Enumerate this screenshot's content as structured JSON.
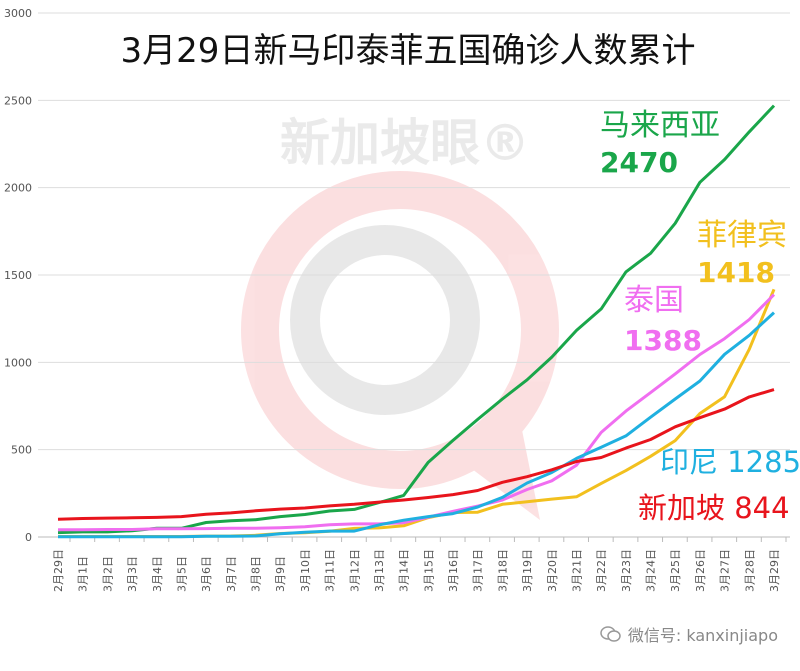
{
  "chart_data": {
    "type": "line",
    "title": "3月29日新马印泰菲五国确诊人数累计",
    "xlabel": "",
    "ylabel": "",
    "ylim": [
      0,
      3000
    ],
    "yticks": [
      0,
      500,
      1000,
      1500,
      2000,
      2500,
      3000
    ],
    "grid": true,
    "legend": "inline labels at line ends",
    "categories": [
      "2月29日",
      "3月1日",
      "3月2日",
      "3月3日",
      "3月4日",
      "3月5日",
      "3月6日",
      "3月7日",
      "3月8日",
      "3月9日",
      "3月10日",
      "3月11日",
      "3月12日",
      "3月13日",
      "3月14日",
      "3月15日",
      "3月16日",
      "3月17日",
      "3月18日",
      "3月19日",
      "3月20日",
      "3月21日",
      "3月22日",
      "3月23日",
      "3月24日",
      "3月25日",
      "3月26日",
      "3月27日",
      "3月28日",
      "3月29日"
    ],
    "series": [
      {
        "name": "马来西亚",
        "label_value": "2470",
        "color": "#1aa64a",
        "values": [
          25,
          29,
          29,
          36,
          50,
          50,
          83,
          93,
          99,
          117,
          129,
          149,
          158,
          197,
          238,
          428,
          553,
          673,
          790,
          900,
          1030,
          1183,
          1306,
          1518,
          1624,
          1796,
          2031,
          2161,
          2320,
          2470
        ]
      },
      {
        "name": "菲律宾",
        "label_value": "1418",
        "color": "#f2c01e",
        "values": [
          3,
          3,
          3,
          3,
          3,
          3,
          5,
          6,
          10,
          20,
          24,
          33,
          49,
          52,
          64,
          111,
          140,
          142,
          187,
          202,
          217,
          230,
          307,
          380,
          462,
          552,
          707,
          803,
          1075,
          1418
        ]
      },
      {
        "name": "泰国",
        "label_value": "1388",
        "color": "#f06ef0",
        "values": [
          42,
          42,
          43,
          43,
          47,
          47,
          48,
          50,
          50,
          53,
          59,
          70,
          75,
          75,
          82,
          114,
          147,
          177,
          212,
          272,
          322,
          411,
          599,
          721,
          827,
          934,
          1045,
          1136,
          1245,
          1388
        ]
      },
      {
        "name": "印尼",
        "label_value": "1285",
        "color": "#1fb0e0",
        "values": [
          2,
          2,
          2,
          2,
          2,
          2,
          4,
          4,
          6,
          19,
          27,
          34,
          34,
          69,
          96,
          117,
          134,
          172,
          227,
          309,
          369,
          450,
          514,
          579,
          686,
          790,
          893,
          1046,
          1155,
          1285
        ]
      },
      {
        "name": "新加坡",
        "label_value": "844",
        "color": "#e8141c",
        "values": [
          102,
          106,
          108,
          110,
          112,
          117,
          130,
          138,
          150,
          160,
          166,
          178,
          187,
          200,
          212,
          226,
          243,
          266,
          313,
          345,
          385,
          432,
          455,
          509,
          558,
          631,
          683,
          732,
          802,
          844
        ]
      }
    ]
  },
  "watermark": "新加坡眼®",
  "footer": {
    "text": "微信号: kanxinjiapo",
    "icon": "wechat-icon"
  }
}
